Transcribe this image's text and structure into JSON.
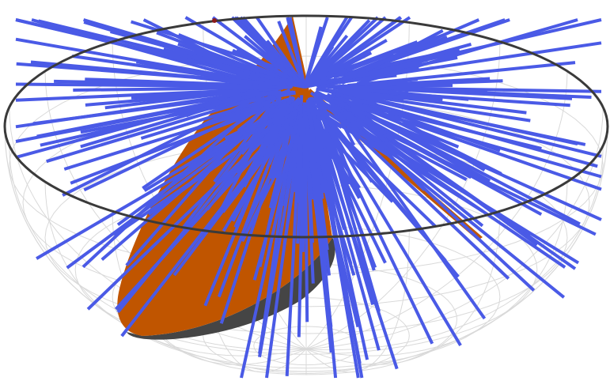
{
  "scene": {
    "description_visible_text": "",
    "colors": {
      "background": "#ffffff",
      "grid": "#d9d9d9",
      "rim": "#3a3a3a",
      "plane": "#c05500",
      "plane_shadow": "#454545",
      "lines": "#4a5ae6",
      "marker": "#8b1a1a"
    },
    "grid_meridians": 18,
    "grid_parallels": 8,
    "line_count": 260,
    "line_seed": 7
  }
}
